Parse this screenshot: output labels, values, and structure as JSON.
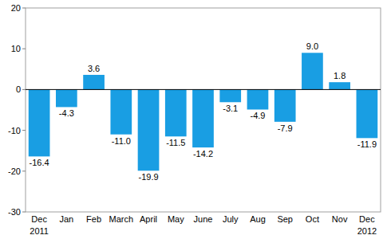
{
  "chart_data": {
    "type": "bar",
    "categories": [
      "Dec",
      "Jan",
      "Feb",
      "March",
      "April",
      "May",
      "June",
      "July",
      "Aug",
      "Sep",
      "Oct",
      "Nov",
      "Dec"
    ],
    "values": [
      -16.4,
      -4.3,
      3.6,
      -11.0,
      -19.9,
      -11.5,
      -14.2,
      -3.1,
      -4.9,
      -7.9,
      9.0,
      1.8,
      -11.9
    ],
    "value_labels": [
      "-16.4",
      "-4.3",
      "3.6",
      "-11.0",
      "-19.9",
      "-11.5",
      "-14.2",
      "-3.1",
      "-4.9",
      "-7.9",
      "9.0",
      "1.8",
      "-11.9"
    ],
    "data_labels": true,
    "color": "#199ee3",
    "ylim": [
      -30,
      20
    ],
    "yticks": [
      -30,
      -20,
      -10,
      0,
      10,
      20
    ],
    "grid": false,
    "annotations": [
      {
        "text": "2011",
        "at": 0
      },
      {
        "text": "2012",
        "at": 12
      }
    ]
  }
}
